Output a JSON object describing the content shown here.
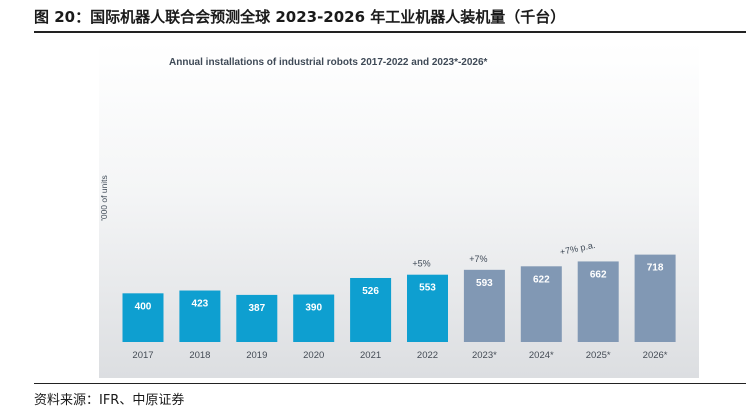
{
  "figure": {
    "title": "图 20：国际机器人联合会预测全球 2023-2026 年工业机器人装机量（千台）",
    "source": "资料来源：IFR、中原证券"
  },
  "chart_data": {
    "type": "bar",
    "title": "Annual installations of industrial robots 2017-2022 and 2023*-2026*",
    "ylabel": "'000 of units",
    "xlabel": "",
    "ylim": [
      0,
      800
    ],
    "grid": false,
    "categories": [
      "2017",
      "2018",
      "2019",
      "2020",
      "2021",
      "2022",
      "2023*",
      "2024*",
      "2025*",
      "2026*"
    ],
    "values": [
      400,
      423,
      387,
      390,
      526,
      553,
      593,
      622,
      662,
      718
    ],
    "colors": {
      "actual": "#0e9fd0",
      "forecast": "#8198b4"
    },
    "forecast_from_index": 6,
    "annotations": [
      {
        "text": "+5%",
        "category": "2022"
      },
      {
        "text": "+7%",
        "category": "2023*"
      },
      {
        "text": "+7% p.a.",
        "category": "2025*"
      }
    ]
  }
}
